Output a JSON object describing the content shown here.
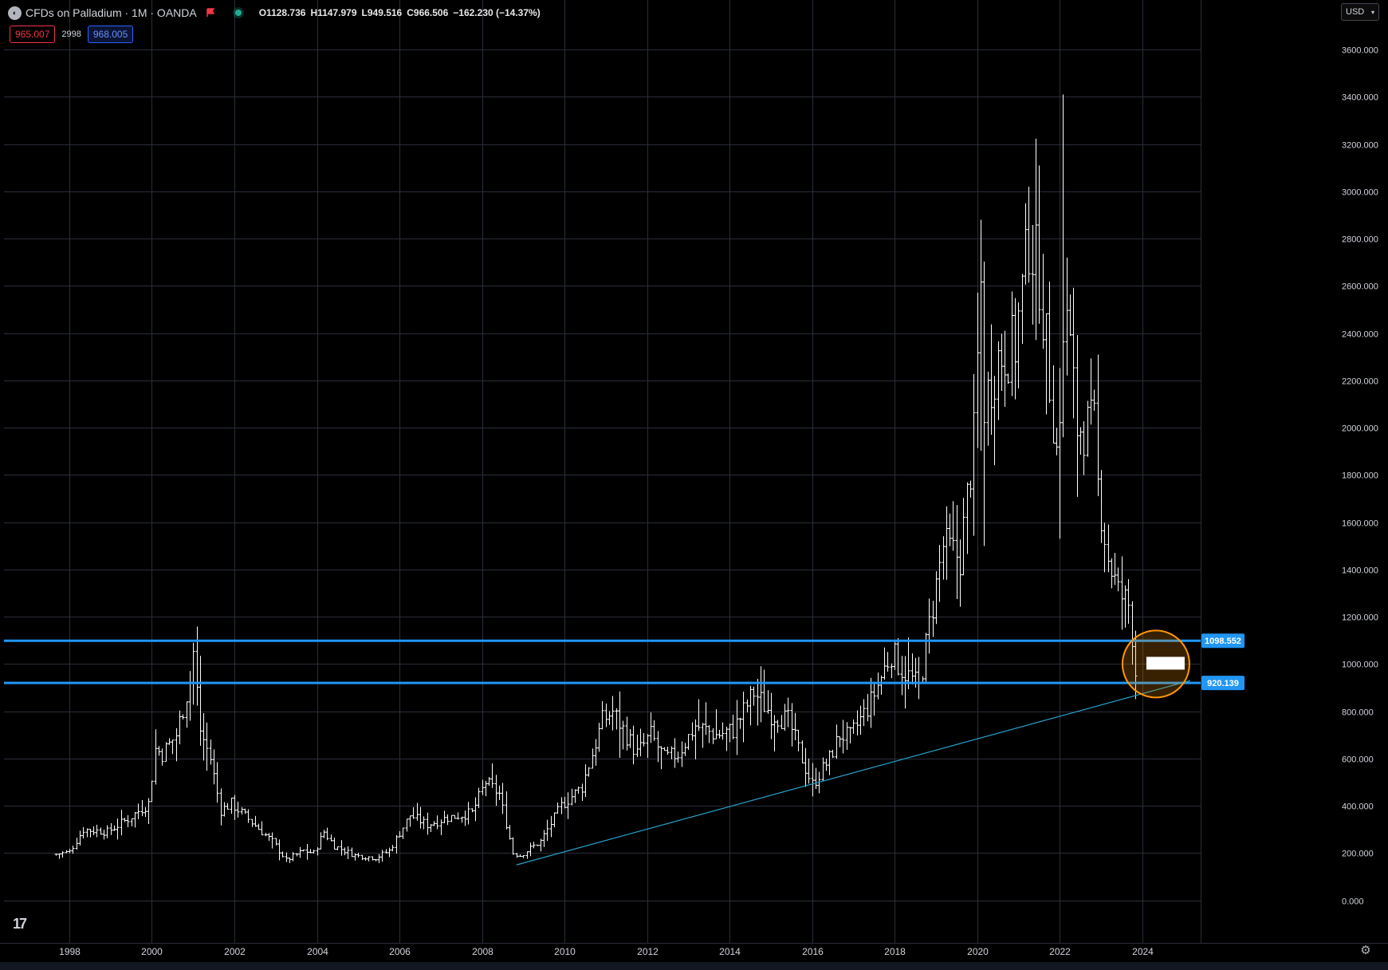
{
  "header": {
    "symbol_title": "CFDs on Palladium · 1M · OANDA",
    "open": "O1128.736",
    "high": "H1147.979",
    "low": "L949.516",
    "close": "C966.506",
    "change": "−162.230 (−14.37%)"
  },
  "quote": {
    "bid": "965.007",
    "spread": "2998",
    "ask": "968.005"
  },
  "currency_selector": {
    "label": "USD",
    "icon": "chevron-down-icon"
  },
  "colors": {
    "background": "#000000",
    "grid": "#2a2e39",
    "bars": "#ffffff",
    "level_line": "#2196f3",
    "trendline": "#26a0c9",
    "circle": "#ff9800",
    "axis_text": "#d1d4dc"
  },
  "chart_data": {
    "type": "ohlc",
    "interval": "1M",
    "x_range": [
      "1996-06",
      "2025-06"
    ],
    "y_range": [
      -180,
      3810
    ],
    "y_ticks": [
      "3600.000",
      "3400.000",
      "3200.000",
      "3000.000",
      "2800.000",
      "2600.000",
      "2400.000",
      "2200.000",
      "2000.000",
      "1800.000",
      "1600.000",
      "1400.000",
      "1200.000",
      "1000.000",
      "800.000",
      "600.000",
      "400.000",
      "200.000",
      "0.000"
    ],
    "x_ticks": [
      "1998",
      "2000",
      "2002",
      "2004",
      "2006",
      "2008",
      "2010",
      "2012",
      "2014",
      "2016",
      "2018",
      "2020",
      "2022",
      "2024"
    ],
    "anchors": [
      [
        "1997-09",
        195
      ],
      [
        "1998-01",
        205
      ],
      [
        "1998-05",
        300
      ],
      [
        "1998-12",
        290
      ],
      [
        "1999-06",
        345
      ],
      [
        "1999-12",
        410
      ],
      [
        "2000-02",
        640
      ],
      [
        "2000-04",
        620
      ],
      [
        "2000-08",
        700
      ],
      [
        "2000-12",
        930
      ],
      [
        "2001-01",
        1050
      ],
      [
        "2001-03",
        720
      ],
      [
        "2001-06",
        600
      ],
      [
        "2001-09",
        380
      ],
      [
        "2001-12",
        410
      ],
      [
        "2002-06",
        330
      ],
      [
        "2002-12",
        250
      ],
      [
        "2003-04",
        170
      ],
      [
        "2003-09",
        210
      ],
      [
        "2003-12",
        200
      ],
      [
        "2004-03",
        290
      ],
      [
        "2004-06",
        230
      ],
      [
        "2004-12",
        190
      ],
      [
        "2005-06",
        180
      ],
      [
        "2005-10",
        210
      ],
      [
        "2006-04",
        360
      ],
      [
        "2006-09",
        320
      ],
      [
        "2007-03",
        350
      ],
      [
        "2007-10",
        370
      ],
      [
        "2008-02",
        500
      ],
      [
        "2008-06",
        450
      ],
      [
        "2008-10",
        200
      ],
      [
        "2008-12",
        190
      ],
      [
        "2009-06",
        250
      ],
      [
        "2009-12",
        400
      ],
      [
        "2010-06",
        480
      ],
      [
        "2010-12",
        760
      ],
      [
        "2011-03",
        800
      ],
      [
        "2011-10",
        620
      ],
      [
        "2012-02",
        700
      ],
      [
        "2012-06",
        600
      ],
      [
        "2012-10",
        620
      ],
      [
        "2013-03",
        740
      ],
      [
        "2013-09",
        700
      ],
      [
        "2014-02",
        720
      ],
      [
        "2014-08",
        880
      ],
      [
        "2015-01",
        790
      ],
      [
        "2015-06",
        760
      ],
      [
        "2015-11",
        560
      ],
      [
        "2016-01",
        490
      ],
      [
        "2016-06",
        600
      ],
      [
        "2016-09",
        700
      ],
      [
        "2016-12",
        690
      ],
      [
        "2017-06",
        840
      ],
      [
        "2017-12",
        1050
      ],
      [
        "2018-03",
        980
      ],
      [
        "2018-08",
        900
      ],
      [
        "2018-12",
        1250
      ],
      [
        "2019-03",
        1500
      ],
      [
        "2019-08",
        1450
      ],
      [
        "2019-12",
        1950
      ],
      [
        "2020-02",
        2600
      ],
      [
        "2020-03",
        2100
      ],
      [
        "2020-07",
        2300
      ],
      [
        "2020-12",
        2350
      ],
      [
        "2021-04",
        2800
      ],
      [
        "2021-07",
        2650
      ],
      [
        "2021-12",
        1900
      ],
      [
        "2022-03",
        2500
      ],
      [
        "2022-06",
        2000
      ],
      [
        "2022-11",
        2000
      ],
      [
        "2022-12",
        1750
      ],
      [
        "2023-03",
        1450
      ],
      [
        "2023-06",
        1300
      ],
      [
        "2023-09",
        1250
      ],
      [
        "2023-10",
        1130
      ],
      [
        "2023-11",
        966
      ]
    ],
    "horizontal_levels": [
      {
        "value": 1098.552,
        "label": "1098.552"
      },
      {
        "value": 920.139,
        "label": "920.139"
      }
    ],
    "trendline": {
      "from": [
        "2008-11",
        150
      ],
      "to": [
        "2025-03",
        930
      ]
    },
    "highlight_circle": {
      "center": [
        "2024-05",
        1000
      ],
      "note": ""
    }
  }
}
